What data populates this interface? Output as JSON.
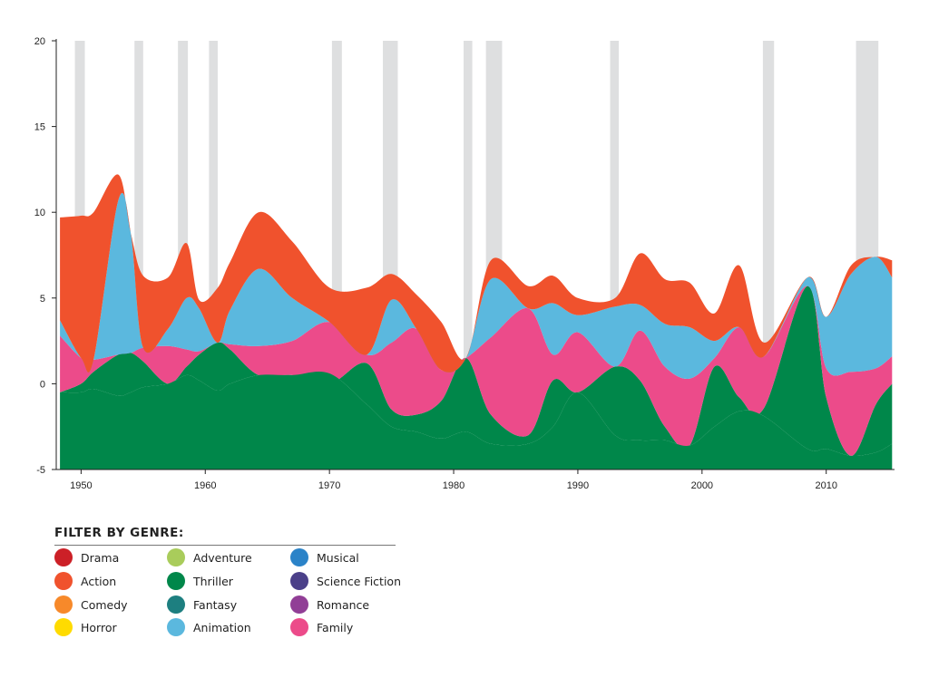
{
  "chart_data": {
    "type": "area",
    "xlim": [
      1948,
      2015.5
    ],
    "ylim": [
      -5,
      20
    ],
    "x_ticks": [
      1950,
      1960,
      1970,
      1980,
      1990,
      2000,
      2010
    ],
    "y_ticks": [
      -5,
      0,
      5,
      10,
      15,
      20
    ],
    "grid": false,
    "highlight_bands": [
      [
        1949.5,
        1950.3
      ],
      [
        1954.3,
        1955.0
      ],
      [
        1957.8,
        1958.6
      ],
      [
        1960.3,
        1961.0
      ],
      [
        1970.2,
        1971.0
      ],
      [
        1974.3,
        1975.5
      ],
      [
        1980.8,
        1981.5
      ],
      [
        1982.6,
        1983.9
      ],
      [
        1992.6,
        1993.3
      ],
      [
        2004.9,
        2005.8
      ],
      [
        2012.4,
        2014.2
      ]
    ],
    "highlight_band_height": 20,
    "x": [
      1948.3,
      1950,
      1951,
      1953,
      1954,
      1955,
      1957,
      1958.5,
      1959.5,
      1961,
      1962,
      1964.3,
      1967,
      1970,
      1973,
      1975,
      1977,
      1979,
      1981,
      1983,
      1986,
      1988,
      1990,
      1993,
      1995,
      1997,
      1999,
      2001,
      2003,
      2005,
      2008.5,
      2010,
      2012,
      2014,
      2015.3
    ],
    "series": [
      {
        "name": "Thriller",
        "color": "#00874A",
        "baseline": [
          -0.5,
          -0.5,
          -0.3,
          -0.7,
          -0.5,
          -0.2,
          0.0,
          0.5,
          0.2,
          -0.4,
          0.0,
          0.5,
          0.5,
          0.6,
          -1.2,
          -2.5,
          -2.8,
          -3.2,
          -2.8,
          -3.5,
          -3.5,
          -2.5,
          -0.5,
          -3.0,
          -3.3,
          -3.3,
          -3.6,
          -2.5,
          -1.6,
          -1.9,
          -3.8,
          -3.8,
          -4.2,
          -4.0,
          -3.5
        ],
        "values": [
          0.0,
          0.5,
          1.0,
          2.4,
          2.3,
          1.5,
          0.0,
          0.5,
          1.5,
          2.8,
          2.0,
          0.0,
          0.0,
          -0.6,
          2.4,
          1.0,
          1.0,
          2.2,
          4.3,
          1.7,
          0.5,
          2.7,
          0.0,
          4.0,
          3.5,
          0.8,
          0.0,
          3.5,
          0.8,
          0.5,
          9.5,
          3.0,
          0.0,
          2.8,
          3.5
        ]
      },
      {
        "name": "Family",
        "color": "#EC4B8A",
        "values": [
          3.3,
          1.5,
          0.7,
          0.0,
          0.0,
          0.8,
          2.2,
          1.0,
          0.2,
          0.0,
          0.3,
          1.7,
          2.0,
          3.6,
          0.5,
          3.9,
          5.0,
          1.8,
          0.0,
          4.5,
          7.4,
          1.5,
          3.5,
          0.0,
          2.9,
          3.5,
          3.9,
          0.5,
          4.1,
          3.0,
          0.0,
          1.7,
          4.9,
          2.1,
          1.6
        ]
      },
      {
        "name": "Animation",
        "color": "#5BB8DE",
        "values": [
          0.9,
          0.0,
          0.0,
          9.0,
          7.0,
          0.0,
          1.0,
          3.0,
          2.5,
          0.0,
          2.0,
          4.5,
          2.5,
          0.0,
          0.0,
          2.5,
          0.0,
          0.0,
          0.0,
          3.4,
          0.0,
          3.0,
          1.0,
          3.5,
          1.5,
          2.5,
          3.0,
          1.0,
          0.0,
          0.0,
          0.5,
          3.0,
          5.7,
          6.5,
          4.6
        ]
      },
      {
        "name": "Action",
        "color": "#F0522D",
        "values": [
          6.0,
          8.3,
          8.6,
          1.5,
          0.0,
          4.2,
          3.0,
          3.2,
          0.5,
          3.2,
          2.8,
          3.3,
          3.3,
          2.0,
          3.9,
          1.5,
          2.0,
          2.8,
          0.0,
          1.1,
          1.3,
          1.6,
          1.0,
          0.5,
          3.0,
          2.6,
          2.6,
          1.6,
          3.6,
          0.8,
          0.0,
          0.0,
          0.5,
          0.0,
          1.0
        ]
      }
    ]
  },
  "filter": {
    "title": "FILTER BY GENRE:",
    "genres": [
      {
        "label": "Drama",
        "color": "#CC2027"
      },
      {
        "label": "Action",
        "color": "#F0522D"
      },
      {
        "label": "Comedy",
        "color": "#F7892A"
      },
      {
        "label": "Horror",
        "color": "#FFDB00"
      },
      {
        "label": "Adventure",
        "color": "#A9CC5B"
      },
      {
        "label": "Thriller",
        "color": "#00874A"
      },
      {
        "label": "Fantasy",
        "color": "#1D7F80"
      },
      {
        "label": "Animation",
        "color": "#5BB8DE"
      },
      {
        "label": "Musical",
        "color": "#2B83C8"
      },
      {
        "label": "Science Fiction",
        "color": "#4B4089"
      },
      {
        "label": "Romance",
        "color": "#913E96"
      },
      {
        "label": "Family",
        "color": "#EC4B8A"
      }
    ]
  }
}
